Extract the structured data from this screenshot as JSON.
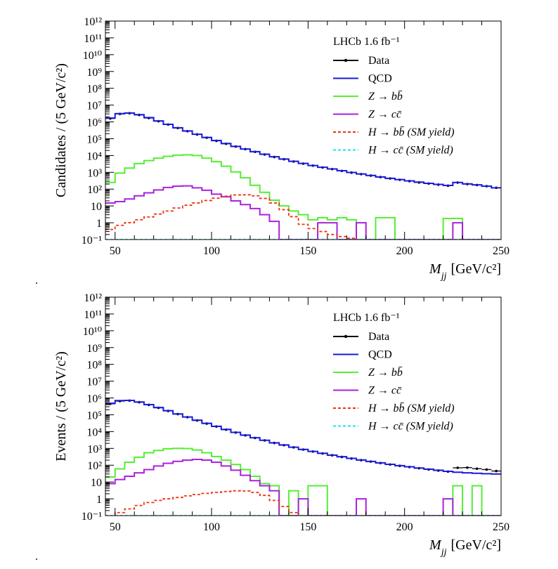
{
  "legend_labels": {
    "data": "Data",
    "qcd": "QCD",
    "zbb": "Z → bb̄",
    "zcc": "Z → cc̄",
    "hbb": "H → bb̄ (SM yield)",
    "hcc": "H → cc̄ (SM yield)"
  },
  "colors": {
    "data": "#000000",
    "qcd": "#1a1adf",
    "zbb": "#55ee33",
    "zcc": "#aa22dd",
    "hbb": "#ee3311",
    "hcc": "#22ddee"
  },
  "chart_data": [
    {
      "type": "line",
      "annotation": "LHCb 1.6 fb⁻¹",
      "xlabel": "M_jj [GeV/c²]",
      "ylabel": "Candidates / (5 GeV/c²)",
      "xlim": [
        45,
        250
      ],
      "ylim": [
        0.1,
        1000000000000
      ],
      "log_y": true,
      "legend_position": "top-right",
      "x_ticks": [
        50,
        100,
        150,
        200,
        250
      ],
      "y_tick_labels": [
        "10⁻¹",
        "1",
        "10",
        "10²",
        "10³",
        "10⁴",
        "10⁵",
        "10⁶",
        "10⁷",
        "10⁸",
        "10⁹",
        "10¹⁰",
        "10¹¹",
        "10¹²"
      ],
      "bin_edges": [
        45,
        50,
        55,
        60,
        65,
        70,
        75,
        80,
        85,
        90,
        95,
        100,
        105,
        110,
        115,
        120,
        125,
        130,
        135,
        140,
        145,
        150,
        155,
        160,
        165,
        170,
        175,
        180,
        185,
        190,
        195,
        200,
        205,
        210,
        215,
        220,
        225,
        230,
        235,
        240,
        245,
        250
      ],
      "series": [
        {
          "name": "Data",
          "style": "points",
          "values": [
            1600000,
            3000000,
            3300000,
            2600000,
            1700000,
            1100000,
            700000,
            430000,
            280000,
            180000,
            115000,
            75000,
            50000,
            34000,
            24000,
            16500,
            11500,
            8200,
            6000,
            4400,
            3300,
            2500,
            1950,
            1550,
            1220,
            960,
            780,
            640,
            520,
            430,
            360,
            300,
            250,
            215,
            185,
            160,
            245,
            200,
            175,
            150,
            120
          ]
        },
        {
          "name": "QCD",
          "style": "step",
          "values": [
            1700000,
            3100000,
            3400000,
            2700000,
            1800000,
            1150000,
            720000,
            450000,
            290000,
            185000,
            120000,
            78000,
            52000,
            35000,
            24500,
            17000,
            12000,
            8500,
            6200,
            4500,
            3400,
            2550,
            2000,
            1580,
            1250,
            980,
            800,
            650,
            530,
            440,
            370,
            310,
            260,
            220,
            190,
            165,
            250,
            205,
            180,
            150,
            120
          ]
        },
        {
          "name": "Z → bb̄",
          "style": "step",
          "values": [
            250,
            900,
            1800,
            3300,
            5000,
            7000,
            9000,
            10500,
            11000,
            10000,
            7000,
            4300,
            2300,
            1050,
            470,
            170,
            65,
            22,
            10,
            5,
            3,
            1.5,
            2,
            1.5,
            2,
            1.5,
            0.1,
            0.1,
            2,
            2,
            0.1,
            0.1,
            0.1,
            0.1,
            0.1,
            1.8,
            1.8,
            0.1,
            0.1,
            0.1,
            0.1
          ]
        },
        {
          "name": "Z → cc̄",
          "style": "step",
          "values": [
            15,
            18,
            26,
            40,
            60,
            90,
            125,
            150,
            155,
            120,
            85,
            50,
            35,
            20,
            12,
            7,
            3,
            1.2,
            0.1,
            0.1,
            0.1,
            0.1,
            1,
            1,
            0.1,
            0.1,
            1,
            0.1,
            0.1,
            0.1,
            0.1,
            0.1,
            0.1,
            0.1,
            0.1,
            0.1,
            1,
            0.1,
            0.1,
            0.1,
            0.1
          ]
        },
        {
          "name": "H → bb̄ (SM yield)",
          "style": "dashed",
          "values": [
            0.4,
            0.7,
            1.0,
            1.5,
            2.2,
            3.3,
            5,
            7.5,
            11,
            15,
            21,
            29,
            38,
            45,
            46,
            40,
            28,
            15,
            6,
            2.3,
            0.8,
            0.45,
            0.3,
            0.2,
            0.15,
            0.12,
            0.1,
            0.1,
            0.1,
            0.1,
            0.1,
            0.1,
            0.1,
            0.1,
            0.1,
            0.1,
            0.1,
            0.1,
            0.1,
            0.1,
            0.1
          ]
        },
        {
          "name": "H → cc̄ (SM yield)",
          "style": "dashed",
          "values": [
            0.1,
            0.1,
            0.1,
            0.1,
            0.1,
            0.1,
            0.1,
            0.1,
            0.1,
            0.1,
            0.1,
            0.1,
            0.1,
            0.1,
            0.1,
            0.1,
            0.1,
            0.1,
            0.1,
            0.1,
            0.1,
            0.1,
            0.1,
            0.1,
            0.1,
            0.1,
            0.1,
            0.1,
            0.1,
            0.1,
            0.1,
            0.1,
            0.1,
            0.1,
            0.1,
            0.1,
            0.1,
            0.1,
            0.1,
            0.1,
            0.1
          ]
        }
      ]
    },
    {
      "type": "line",
      "annotation": "LHCb 1.6 fb⁻¹",
      "xlabel": "M_jj [GeV/c²]",
      "ylabel": "Events / (5 GeV/c²)",
      "xlim": [
        45,
        250
      ],
      "ylim": [
        0.1,
        1000000000000
      ],
      "log_y": true,
      "legend_position": "top-right",
      "x_ticks": [
        50,
        100,
        150,
        200,
        250
      ],
      "y_tick_labels": [
        "10⁻¹",
        "1",
        "10",
        "10²",
        "10³",
        "10⁴",
        "10⁵",
        "10⁶",
        "10⁷",
        "10⁸",
        "10⁹",
        "10¹⁰",
        "10¹¹",
        "10¹²"
      ],
      "bin_edges": [
        45,
        50,
        55,
        60,
        65,
        70,
        75,
        80,
        85,
        90,
        95,
        100,
        105,
        110,
        115,
        120,
        125,
        130,
        135,
        140,
        145,
        150,
        155,
        160,
        165,
        170,
        175,
        180,
        185,
        190,
        195,
        200,
        205,
        210,
        215,
        220,
        225,
        230,
        235,
        240,
        245,
        250
      ],
      "series": [
        {
          "name": "Data",
          "style": "points",
          "values": [
            450000,
            650000,
            700000,
            560000,
            390000,
            260000,
            170000,
            110000,
            72000,
            46000,
            30000,
            20000,
            13000,
            8800,
            6000,
            4200,
            3000,
            2100,
            1550,
            1150,
            850,
            650,
            500,
            390,
            310,
            250,
            200,
            165,
            135,
            110,
            92,
            78,
            66,
            56,
            48,
            42,
            70,
            72,
            62,
            55,
            45
          ]
        },
        {
          "name": "QCD",
          "style": "step",
          "values": [
            480000,
            700000,
            720000,
            580000,
            400000,
            270000,
            175000,
            113000,
            74000,
            48000,
            31000,
            20500,
            13500,
            9000,
            6200,
            4300,
            3050,
            2150,
            1600,
            1180,
            870,
            660,
            510,
            400,
            320,
            255,
            205,
            168,
            138,
            113,
            94,
            80,
            68,
            58,
            50,
            43,
            38,
            35,
            33,
            31,
            30
          ]
        },
        {
          "name": "Z → bb̄",
          "style": "step",
          "values": [
            20,
            60,
            150,
            300,
            550,
            750,
            950,
            1000,
            980,
            800,
            550,
            330,
            200,
            110,
            55,
            22,
            8,
            6,
            0.1,
            3,
            0.1,
            6,
            6,
            0.1,
            0.1,
            0.1,
            0.1,
            0.1,
            0.1,
            0.1,
            0.1,
            0.1,
            0.1,
            0.1,
            0.1,
            0.1,
            6,
            0.1,
            6,
            0.1,
            0.1
          ]
        },
        {
          "name": "Z → cc̄",
          "style": "step",
          "values": [
            8,
            14,
            22,
            35,
            55,
            90,
            130,
            170,
            200,
            220,
            200,
            150,
            90,
            50,
            25,
            12,
            6,
            3,
            0.1,
            0.1,
            1,
            0.1,
            0.1,
            0.1,
            0.1,
            0.1,
            1,
            0.1,
            0.1,
            0.1,
            0.1,
            0.1,
            0.1,
            0.1,
            0.1,
            1,
            0.1,
            0.1,
            0.1,
            0.1,
            0.1
          ]
        },
        {
          "name": "H → bb̄ (SM yield)",
          "style": "dashed",
          "values": [
            0.1,
            0.15,
            0.25,
            0.4,
            0.6,
            0.8,
            1.0,
            1.2,
            1.5,
            1.8,
            2.1,
            2.4,
            2.7,
            3.0,
            2.9,
            2.4,
            1.6,
            0.8,
            0.35,
            0.15,
            0.1,
            0.1,
            0.1,
            0.1,
            0.1,
            0.1,
            0.1,
            0.1,
            0.1,
            0.1,
            0.1,
            0.1,
            0.1,
            0.1,
            0.1,
            0.1,
            0.1,
            0.1,
            0.1,
            0.1,
            0.1
          ]
        },
        {
          "name": "H → cc̄ (SM yield)",
          "style": "dashed",
          "values": [
            0.1,
            0.1,
            0.1,
            0.1,
            0.1,
            0.1,
            0.1,
            0.1,
            0.1,
            0.1,
            0.1,
            0.1,
            0.1,
            0.1,
            0.1,
            0.1,
            0.1,
            0.1,
            0.1,
            0.1,
            0.1,
            0.1,
            0.1,
            0.1,
            0.1,
            0.1,
            0.1,
            0.1,
            0.1,
            0.1,
            0.1,
            0.1,
            0.1,
            0.1,
            0.1,
            0.1,
            0.1,
            0.1,
            0.1,
            0.1,
            0.1
          ]
        }
      ]
    }
  ]
}
